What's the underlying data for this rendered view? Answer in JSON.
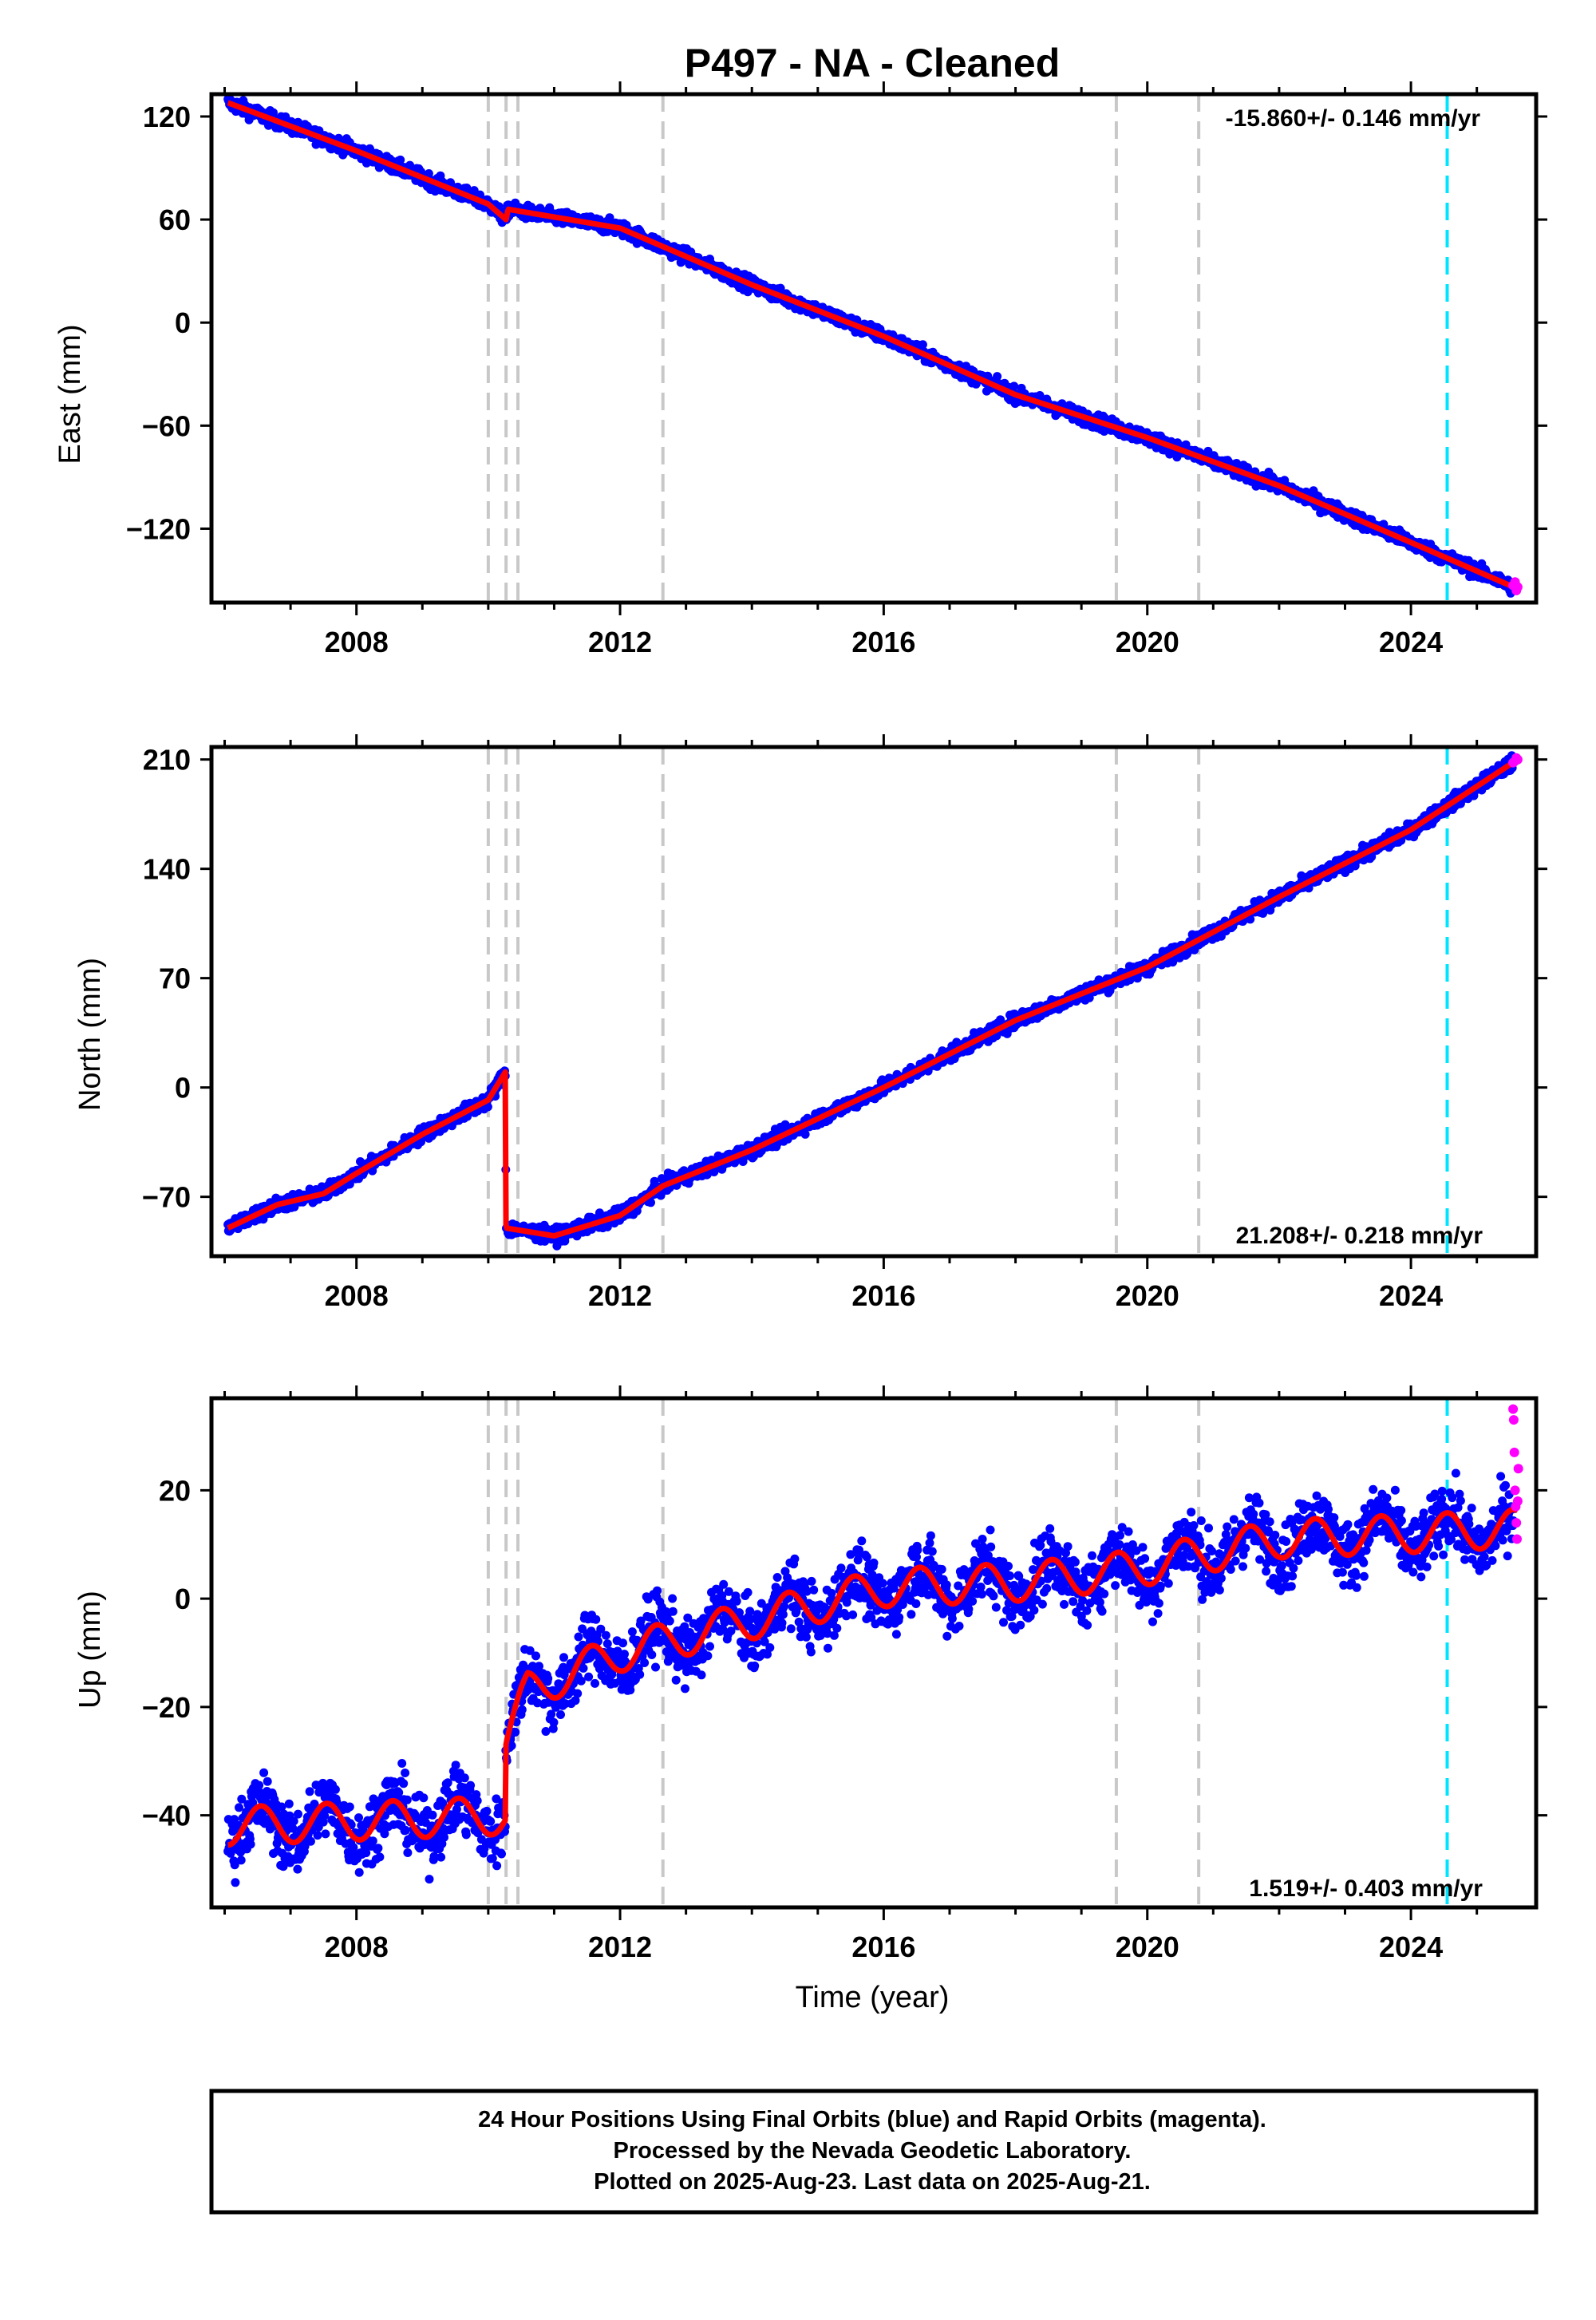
{
  "title": "P497  - NA - Cleaned",
  "colors": {
    "final_orbits": "#0000ff",
    "rapid_orbits": "#ff00ff",
    "model": "#ff0000",
    "event_line": "#c8c8c8",
    "marker_line": "#00e5ff"
  },
  "footer": {
    "line1": "24 Hour Positions Using Final Orbits (blue) and Rapid Orbits (magenta).",
    "line2": "Processed by the Nevada Geodetic Laboratory.",
    "line3": "Plotted on 2025-Aug-23. Last data on 2025-Aug-21."
  },
  "chart_data": [
    {
      "type": "scatter",
      "component": "east",
      "ylabel": "East (mm)",
      "xlabel": "",
      "rate_label": "-15.860+/- 0.146 mm/yr",
      "rate_position": "top-right",
      "xlim": [
        2005.8,
        2025.9
      ],
      "ylim": [
        -163,
        133
      ],
      "yticks": [
        120,
        60,
        0,
        -60,
        -120
      ],
      "xticks": [
        2008,
        2012,
        2016,
        2020,
        2024
      ],
      "event_lines": [
        2010.0,
        2010.27,
        2010.45,
        2012.65,
        2019.53,
        2020.78
      ],
      "marker_line": 2024.55,
      "noise_mm": 2.2,
      "model": [
        [
          2006.05,
          128
        ],
        [
          2008.0,
          100
        ],
        [
          2010.0,
          69
        ],
        [
          2010.27,
          60
        ],
        [
          2010.3,
          66
        ],
        [
          2012.0,
          55
        ],
        [
          2014.0,
          22
        ],
        [
          2016.0,
          -8
        ],
        [
          2018.0,
          -42
        ],
        [
          2020.0,
          -67
        ],
        [
          2022.0,
          -95
        ],
        [
          2024.0,
          -128
        ],
        [
          2025.62,
          -155
        ]
      ],
      "rapid_points": [
        [
          2025.55,
          -153
        ],
        [
          2025.58,
          -151
        ],
        [
          2025.6,
          -156
        ],
        [
          2025.62,
          -154
        ]
      ]
    },
    {
      "type": "scatter",
      "component": "north",
      "ylabel": "North (mm)",
      "xlabel": "",
      "rate_label": "21.208+/- 0.218 mm/yr",
      "rate_position": "bottom-right",
      "xlim": [
        2005.8,
        2025.9
      ],
      "ylim": [
        -108,
        218
      ],
      "yticks": [
        210,
        140,
        70,
        0,
        -70
      ],
      "xticks": [
        2008,
        2012,
        2016,
        2020,
        2024
      ],
      "event_lines": [
        2010.0,
        2010.27,
        2010.45,
        2012.65,
        2019.53,
        2020.78
      ],
      "marker_line": 2024.55,
      "noise_mm": 2.5,
      "model": [
        [
          2006.05,
          -90
        ],
        [
          2006.8,
          -75
        ],
        [
          2007.5,
          -68
        ],
        [
          2008.0,
          -55
        ],
        [
          2009.0,
          -30
        ],
        [
          2010.0,
          -8
        ],
        [
          2010.26,
          10
        ],
        [
          2010.27,
          -90
        ],
        [
          2011.0,
          -95
        ],
        [
          2012.0,
          -82
        ],
        [
          2012.65,
          -63
        ],
        [
          2014.0,
          -40
        ],
        [
          2016.0,
          0
        ],
        [
          2018.0,
          43
        ],
        [
          2020.0,
          77
        ],
        [
          2022.0,
          122
        ],
        [
          2024.0,
          165
        ],
        [
          2025.62,
          210
        ]
      ],
      "rapid_points": [
        [
          2025.55,
          208
        ],
        [
          2025.58,
          209
        ],
        [
          2025.6,
          211
        ],
        [
          2025.62,
          210
        ]
      ]
    },
    {
      "type": "scatter",
      "component": "up",
      "ylabel": "Up (mm)",
      "xlabel": "Time (year)",
      "rate_label": "1.519+/- 0.403 mm/yr",
      "rate_position": "bottom-right",
      "xlim": [
        2005.8,
        2025.9
      ],
      "ylim": [
        -57,
        37
      ],
      "yticks": [
        20,
        0,
        -20,
        -40
      ],
      "xticks": [
        2008,
        2012,
        2016,
        2020,
        2024
      ],
      "event_lines": [
        2010.0,
        2010.27,
        2010.45,
        2012.65,
        2019.53,
        2020.78
      ],
      "marker_line": 2024.55,
      "noise_mm": 3.2,
      "seasonal_amplitude_mm": 3.5,
      "model": [
        [
          2006.05,
          -42
        ],
        [
          2010.26,
          -40
        ],
        [
          2010.27,
          -26
        ],
        [
          2010.6,
          -17
        ],
        [
          2011.0,
          -15
        ],
        [
          2012.0,
          -10
        ],
        [
          2013.0,
          -7
        ],
        [
          2014.0,
          -4
        ],
        [
          2016.0,
          2
        ],
        [
          2018.0,
          3
        ],
        [
          2019.53,
          5
        ],
        [
          2020.0,
          6
        ],
        [
          2020.78,
          8
        ],
        [
          2022.0,
          11
        ],
        [
          2024.0,
          12
        ],
        [
          2025.62,
          13
        ]
      ],
      "rapid_points": [
        [
          2025.55,
          35
        ],
        [
          2025.56,
          33
        ],
        [
          2025.57,
          27
        ],
        [
          2025.58,
          20
        ],
        [
          2025.59,
          17
        ],
        [
          2025.6,
          14
        ],
        [
          2025.61,
          11
        ],
        [
          2025.62,
          18
        ],
        [
          2025.63,
          24
        ]
      ]
    }
  ]
}
